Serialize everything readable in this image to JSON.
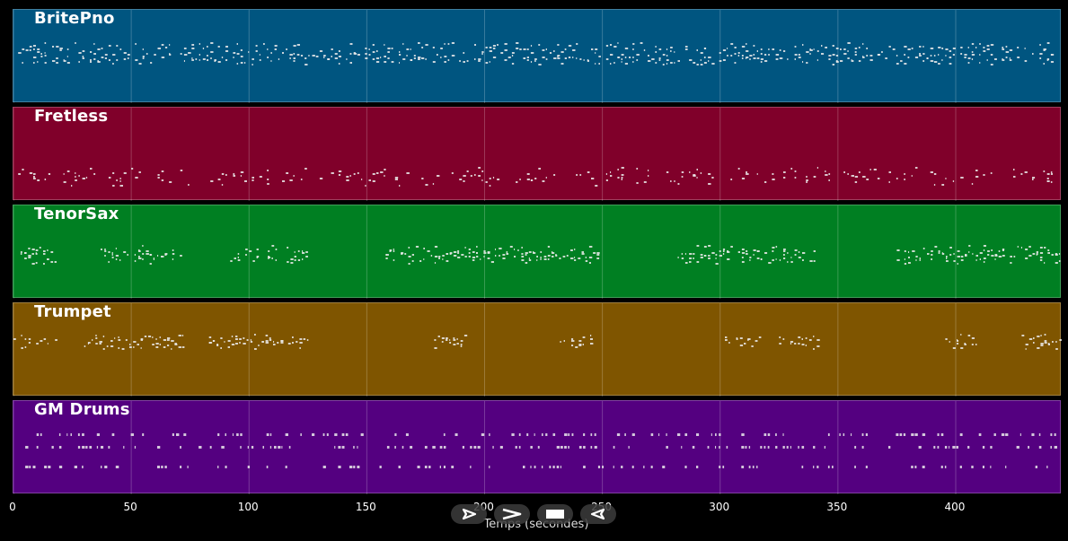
{
  "tracks": [
    {
      "name": "BritePno",
      "color": "#005580"
    },
    {
      "name": "Fretless",
      "color": "#80002a"
    },
    {
      "name": "TenorSax",
      "color": "#007f22"
    },
    {
      "name": "Trumpet",
      "color": "#7f5500"
    },
    {
      "name": "GM Drums",
      "color": "#540080"
    }
  ],
  "axis": {
    "xlabel": "Temps (secondes)",
    "xmin": 0,
    "xmax": 445,
    "ticks": [
      "0",
      "50",
      "100",
      "150",
      "200",
      "250",
      "300",
      "350",
      "400"
    ]
  },
  "controls": [
    {
      "name": "play-icon"
    },
    {
      "name": "fast-forward-icon"
    },
    {
      "name": "stop-icon"
    },
    {
      "name": "rewind-icon"
    }
  ]
}
